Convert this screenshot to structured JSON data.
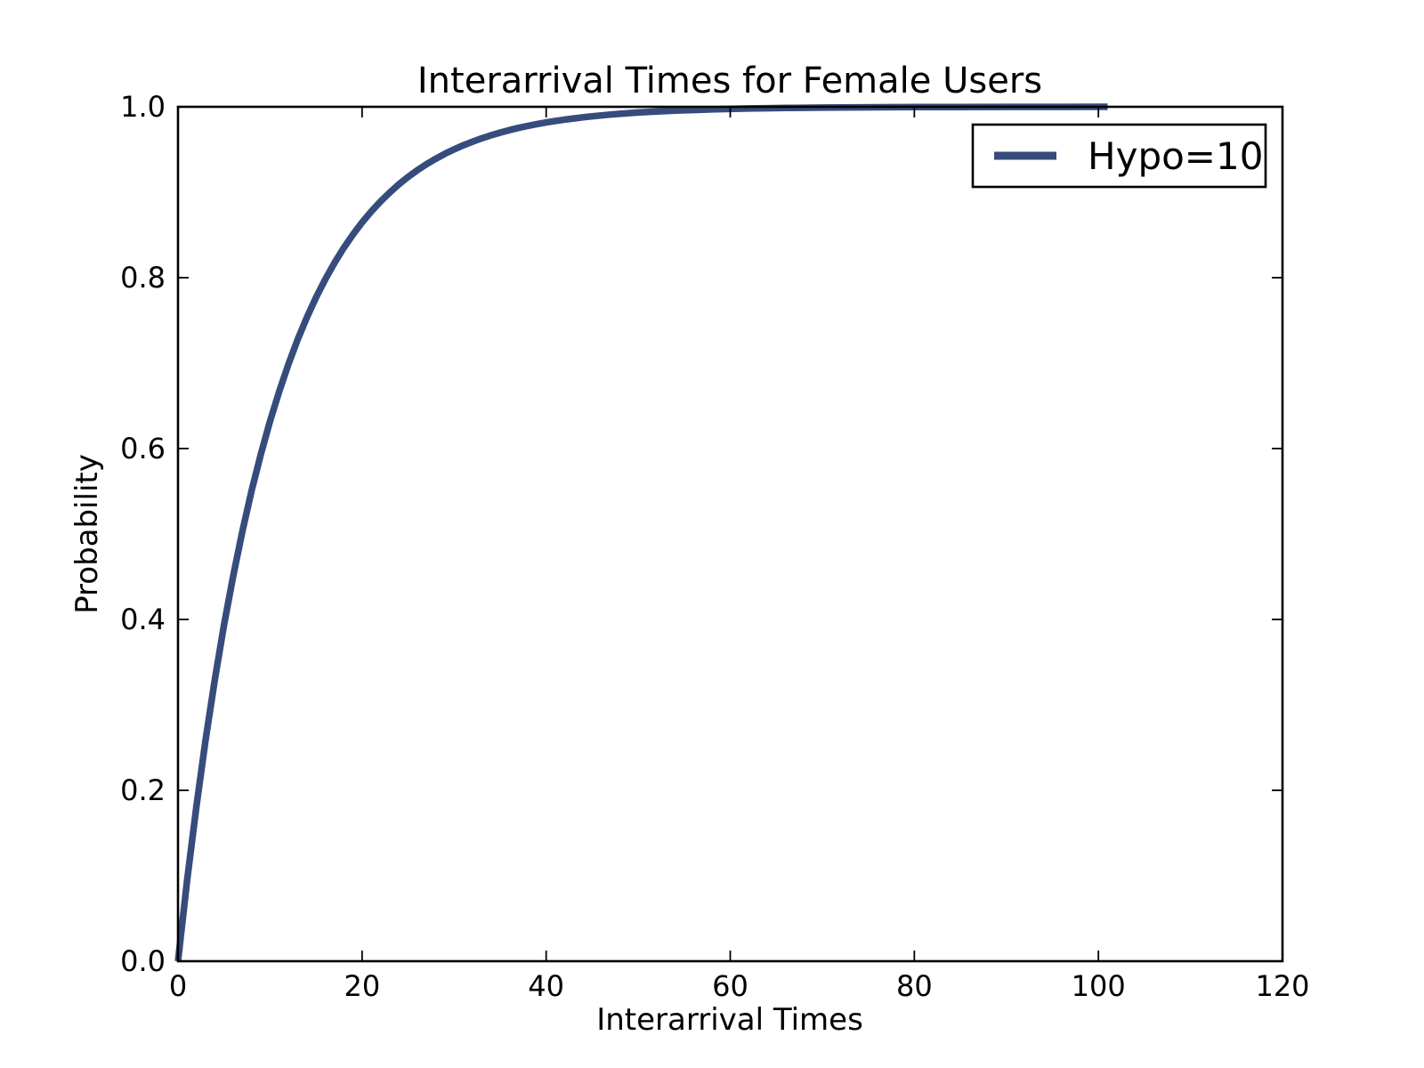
{
  "chart_data": {
    "type": "line",
    "title": "Interarrival Times for Female Users",
    "xlabel": "Interarrival Times",
    "ylabel": "Probability",
    "xlim": [
      0,
      120
    ],
    "ylim": [
      0.0,
      1.0
    ],
    "grid": false,
    "x_ticks": [
      0,
      20,
      40,
      60,
      80,
      100,
      120
    ],
    "x_tick_labels": [
      "0",
      "20",
      "40",
      "60",
      "80",
      "100",
      "120"
    ],
    "y_ticks": [
      0.0,
      0.2,
      0.4,
      0.6,
      0.8,
      1.0
    ],
    "y_tick_labels": [
      "0.0",
      "0.2",
      "0.4",
      "0.6",
      "0.8",
      "1.0"
    ],
    "legend": {
      "position": "upper right",
      "entries": [
        {
          "label": "Hypo=10",
          "color": "#364C7C"
        }
      ]
    },
    "series": [
      {
        "name": "Hypo=10",
        "color": "#364C7C",
        "linewidth": 7.5,
        "x": [
          0,
          1,
          2,
          3,
          4,
          5,
          6,
          7,
          8,
          9,
          10,
          11,
          12,
          13,
          14,
          15,
          16,
          17,
          18,
          19,
          20,
          21,
          22,
          23,
          24,
          25,
          26,
          27,
          28,
          29,
          30,
          31,
          32,
          33,
          34,
          35,
          36,
          37,
          38,
          39,
          40,
          41,
          42,
          43,
          44,
          45,
          46,
          47,
          48,
          49,
          50,
          52,
          54,
          56,
          58,
          60,
          62,
          64,
          66,
          68,
          70,
          72,
          74,
          76,
          78,
          80,
          85,
          90,
          95,
          100,
          101
        ],
        "y": [
          0.0,
          0.0952,
          0.1813,
          0.2592,
          0.3297,
          0.3935,
          0.4512,
          0.5034,
          0.5507,
          0.5934,
          0.6321,
          0.6671,
          0.6988,
          0.7275,
          0.7534,
          0.7769,
          0.7981,
          0.8173,
          0.8347,
          0.8504,
          0.8647,
          0.8775,
          0.8892,
          0.8997,
          0.9093,
          0.9179,
          0.9257,
          0.9328,
          0.9392,
          0.945,
          0.9502,
          0.955,
          0.9592,
          0.9631,
          0.9666,
          0.9698,
          0.9727,
          0.9753,
          0.9776,
          0.9798,
          0.9817,
          0.9834,
          0.985,
          0.9864,
          0.9877,
          0.9889,
          0.9899,
          0.9909,
          0.9918,
          0.9926,
          0.9933,
          0.9945,
          0.9955,
          0.9963,
          0.997,
          0.9975,
          0.998,
          0.9983,
          0.9986,
          0.9989,
          0.9991,
          0.9993,
          0.9994,
          0.9995,
          0.9996,
          0.9997,
          0.9998,
          0.9999,
          0.9999,
          1.0,
          1.0
        ]
      }
    ]
  }
}
